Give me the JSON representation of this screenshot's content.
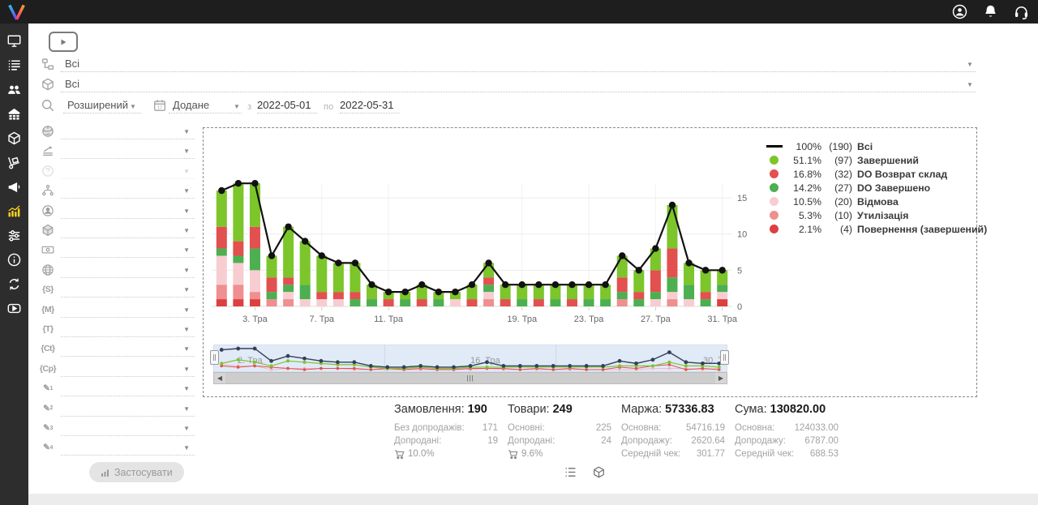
{
  "accent_color": "#fdd21e",
  "topbar": {
    "icons": [
      {
        "name": "user-icon"
      },
      {
        "name": "bell-icon"
      },
      {
        "name": "headset-icon"
      }
    ]
  },
  "sidebar": {
    "items": [
      {
        "icon": "monitor-icon",
        "active": false
      },
      {
        "icon": "orders-list-icon",
        "active": false
      },
      {
        "icon": "customers-icon",
        "active": false
      },
      {
        "icon": "warehouse-icon",
        "active": false
      },
      {
        "icon": "products-cube-icon",
        "active": false
      },
      {
        "icon": "trolley-icon",
        "active": false
      },
      {
        "icon": "megaphone-icon",
        "active": false
      },
      {
        "icon": "analytics-chart-icon",
        "active": true
      },
      {
        "icon": "sliders-icon",
        "active": false
      },
      {
        "icon": "info-icon",
        "active": false
      },
      {
        "icon": "sync-icon",
        "active": false
      },
      {
        "icon": "video-icon",
        "active": false
      }
    ]
  },
  "filters": {
    "video_button_icon": "play-icon",
    "global_selects": [
      {
        "icon": "sitemap-icon",
        "value": "Всі"
      },
      {
        "icon": "package-icon",
        "value": "Всі"
      }
    ],
    "mode_select": {
      "icon": "search-icon",
      "value": "Розширений"
    },
    "date_field_select": {
      "icon": "calendar-icon",
      "value": "Додане"
    },
    "date_from_label": "з",
    "date_from": "2022-05-01",
    "date_to_label": "по",
    "date_to": "2022-05-31",
    "left_rows": [
      {
        "icon": "planet-icon",
        "value": ""
      },
      {
        "icon": "layers-icon",
        "value": ""
      },
      {
        "icon": "question-icon",
        "value": "",
        "disabled": true
      },
      {
        "icon": "hierarchy-icon",
        "value": ""
      },
      {
        "icon": "user-circle-icon",
        "value": ""
      },
      {
        "icon": "cube-icon",
        "value": ""
      },
      {
        "icon": "banknote-icon",
        "value": ""
      },
      {
        "icon": "globe-icon",
        "value": ""
      },
      {
        "icon": "brace-s-icon",
        "glyph": "{S}",
        "value": ""
      },
      {
        "icon": "brace-m-icon",
        "glyph": "{M}",
        "value": ""
      },
      {
        "icon": "brace-t-icon",
        "glyph": "{T}",
        "value": ""
      },
      {
        "icon": "brace-ct-icon",
        "glyph": "{Ct}",
        "value": ""
      },
      {
        "icon": "brace-cp-icon",
        "glyph": "{Cp}",
        "value": ""
      },
      {
        "icon": "pencil-1-icon",
        "glyph": "✎",
        "sub": "1",
        "value": ""
      },
      {
        "icon": "pencil-2-icon",
        "glyph": "✎",
        "sub": "2",
        "value": ""
      },
      {
        "icon": "pencil-3-icon",
        "glyph": "✎",
        "sub": "3",
        "value": ""
      },
      {
        "icon": "pencil-4-icon",
        "glyph": "✎",
        "sub": "4",
        "value": ""
      }
    ],
    "apply_button": {
      "label": "Застосувати",
      "icon": "mini-chart-icon"
    }
  },
  "chart_data": {
    "type": "bar",
    "subtype": "stacked-bars-with-total-line",
    "x_unit": "day of May (Тра), 2022",
    "days": [
      1,
      2,
      3,
      4,
      5,
      6,
      7,
      8,
      9,
      10,
      11,
      12,
      13,
      14,
      15,
      16,
      17,
      18,
      19,
      20,
      21,
      22,
      23,
      24,
      25,
      26,
      27,
      28,
      29,
      30,
      31
    ],
    "x_tick_labels": [
      {
        "day": 3,
        "label": "3. Тра"
      },
      {
        "day": 7,
        "label": "7. Тра"
      },
      {
        "day": 11,
        "label": "11. Тра"
      },
      {
        "day": 19,
        "label": "19. Тра"
      },
      {
        "day": 23,
        "label": "23. Тра"
      },
      {
        "day": 27,
        "label": "27. Тра"
      },
      {
        "day": 31,
        "label": "31. Тра"
      }
    ],
    "yticks": [
      0,
      5,
      10,
      15
    ],
    "ylim": [
      0,
      19
    ],
    "grid": true,
    "legend_position": "right",
    "line_series": {
      "name": "Всі",
      "legend_percent": "100%",
      "legend_count": "(190)",
      "color": "#000000",
      "values": [
        16,
        17,
        17,
        7,
        11,
        9,
        7,
        6,
        6,
        3,
        2,
        2,
        3,
        2,
        2,
        3,
        6,
        3,
        3,
        3,
        3,
        3,
        3,
        3,
        7,
        5,
        8,
        14,
        6,
        5,
        5
      ]
    },
    "bar_series": [
      {
        "name": "Повернення (завершений)",
        "legend_percent": "2.1%",
        "legend_count": "(4)",
        "color": "#dc4040",
        "values": [
          1,
          1,
          1,
          0,
          0,
          0,
          0,
          0,
          0,
          0,
          0,
          0,
          0,
          0,
          0,
          0,
          0,
          0,
          0,
          0,
          0,
          0,
          0,
          0,
          0,
          0,
          0,
          0,
          0,
          0,
          1
        ]
      },
      {
        "name": "Утилізація",
        "legend_percent": "5.3%",
        "legend_count": "(10)",
        "color": "#ef8f8f",
        "values": [
          2,
          2,
          1,
          1,
          1,
          0,
          0,
          0,
          0,
          0,
          0,
          0,
          0,
          0,
          0,
          0,
          1,
          0,
          0,
          0,
          0,
          0,
          0,
          0,
          1,
          0,
          0,
          1,
          0,
          0,
          0
        ]
      },
      {
        "name": "Відмова",
        "legend_percent": "10.5%",
        "legend_count": "(20)",
        "color": "#f7cdd2",
        "values": [
          4,
          3,
          3,
          0,
          1,
          1,
          1,
          1,
          0,
          0,
          0,
          0,
          0,
          0,
          1,
          0,
          1,
          0,
          0,
          0,
          0,
          0,
          0,
          0,
          0,
          0,
          1,
          1,
          1,
          0,
          1
        ]
      },
      {
        "name": "DO Завершено",
        "legend_percent": "14.2%",
        "legend_count": "(27)",
        "color": "#4caf50",
        "values": [
          1,
          1,
          3,
          1,
          1,
          2,
          0,
          0,
          1,
          1,
          0,
          1,
          0,
          1,
          0,
          0,
          1,
          0,
          1,
          0,
          1,
          0,
          1,
          1,
          1,
          1,
          1,
          2,
          2,
          1,
          1
        ]
      },
      {
        "name": "DO Возврат склад",
        "legend_percent": "16.8%",
        "legend_count": "(32)",
        "color": "#e25050",
        "values": [
          3,
          2,
          3,
          2,
          1,
          0,
          1,
          1,
          1,
          0,
          1,
          0,
          1,
          0,
          0,
          1,
          1,
          1,
          0,
          1,
          0,
          1,
          0,
          0,
          2,
          1,
          3,
          4,
          0,
          1,
          0
        ]
      },
      {
        "name": "Завершений",
        "legend_percent": "51.1%",
        "legend_count": "(97)",
        "color": "#7cc52b",
        "values": [
          5,
          8,
          6,
          3,
          7,
          6,
          5,
          4,
          4,
          2,
          1,
          1,
          2,
          1,
          1,
          2,
          2,
          2,
          2,
          2,
          2,
          2,
          2,
          2,
          3,
          3,
          3,
          6,
          3,
          3,
          2
        ]
      }
    ],
    "legend_order": [
      "Всі",
      "Завершений",
      "DO Возврат склад",
      "DO Завершено",
      "Відмова",
      "Утилізація",
      "Повернення (завершений)"
    ],
    "navigator": {
      "labels": [
        "2. Тра",
        "16. Тра",
        "30. Тра"
      ]
    }
  },
  "stats": {
    "columns": [
      {
        "title": "Замовлення:",
        "value": "190",
        "rows": [
          {
            "label": "Без допродажів:",
            "value": "171"
          },
          {
            "label": "Допродані:",
            "value": "19"
          }
        ],
        "cart_percent": "10.0%"
      },
      {
        "title": "Товари:",
        "value": "249",
        "rows": [
          {
            "label": "Основні:",
            "value": "225"
          },
          {
            "label": "Допродані:",
            "value": "24"
          }
        ],
        "cart_percent": "9.6%"
      },
      {
        "title": "Маржа:",
        "value": "57336.83",
        "rows": [
          {
            "label": "Основна:",
            "value": "54716.19"
          },
          {
            "label": "Допродажу:",
            "value": "2620.64"
          },
          {
            "label": "Середній чек:",
            "value": "301.77"
          }
        ]
      },
      {
        "title": "Сума:",
        "value": "130820.00",
        "rows": [
          {
            "label": "Основна:",
            "value": "124033.00"
          },
          {
            "label": "Допродажу:",
            "value": "6787.00"
          },
          {
            "label": "Середній чек:",
            "value": "688.53"
          }
        ]
      }
    ]
  },
  "view_toggles": [
    {
      "icon": "list-view-icon"
    },
    {
      "icon": "package-view-icon"
    }
  ]
}
